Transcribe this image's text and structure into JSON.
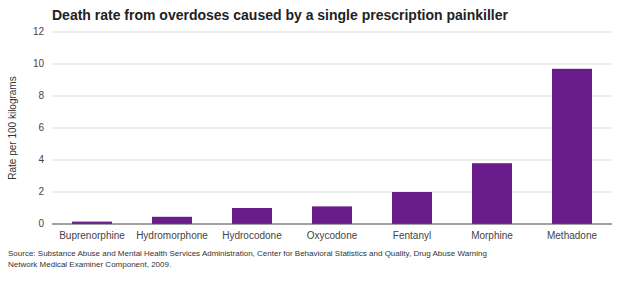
{
  "chart_data": {
    "type": "bar",
    "title": "Death rate from overdoses caused by a single prescription painkiller",
    "y_label": "Rate per 100 kilograms",
    "categories": [
      "Buprenorphine",
      "Hydromorphone",
      "Hydrocodone",
      "Oxycodone",
      "Fentanyl",
      "Morphine",
      "Methadone"
    ],
    "values": [
      0.15,
      0.45,
      1.0,
      1.1,
      2.0,
      3.8,
      9.7
    ],
    "color": "#6B1C8C",
    "ylim": [
      0,
      12
    ],
    "yticks": [
      0,
      2,
      4,
      6,
      8,
      10,
      12
    ],
    "grid": true,
    "annotations": [
      "Source: Substance Abuse and Mental Health Services Administration, Center for Behavioral Statistics and Quality, Drug Abuse Warning\nNetwork Medical Examiner Component, 2009."
    ]
  }
}
